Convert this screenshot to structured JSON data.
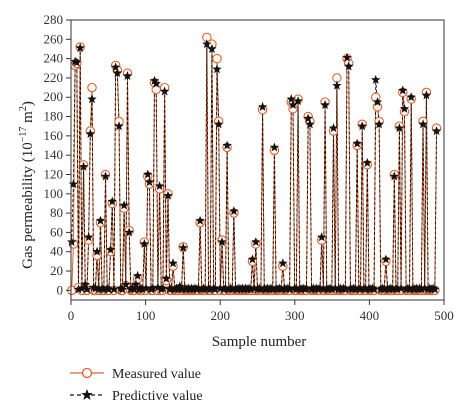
{
  "chart_data": {
    "type": "line",
    "xlabel": "Sample number",
    "ylabel_main": "Gas permeability (10",
    "ylabel_exp": "−17",
    "ylabel_unit": " m",
    "ylabel_unit_exp": "2",
    "ylabel_close": ")",
    "xlim": [
      0,
      500
    ],
    "ylim": [
      -10,
      280
    ],
    "xticks": [
      0,
      100,
      200,
      300,
      400,
      500
    ],
    "yticks": [
      0,
      20,
      40,
      60,
      80,
      100,
      120,
      140,
      160,
      180,
      200,
      220,
      240,
      260,
      280
    ],
    "grid": false,
    "legend_position": "bottom-left",
    "n_samples": 490,
    "series": [
      {
        "name": "Measured value",
        "color": "#e0622a",
        "marker": "circle",
        "linestyle": "solid",
        "values": [
          0,
          48,
          233,
          235,
          3,
          252,
          0,
          130,
          4,
          0,
          52,
          165,
          210,
          0,
          0,
          36,
          0,
          70,
          0,
          0,
          120,
          0,
          0,
          40,
          90,
          0,
          233,
          228,
          175,
          0,
          0,
          85,
          5,
          225,
          62,
          0,
          0,
          0,
          5,
          12,
          0,
          0,
          0,
          50,
          0,
          118,
          110,
          0,
          0,
          215,
          208,
          0,
          105,
          0,
          0,
          210,
          10,
          100,
          0,
          0,
          25,
          0,
          0,
          0,
          2,
          0,
          45,
          0,
          0,
          0,
          0,
          0,
          0,
          0,
          0,
          0,
          70,
          0,
          0,
          0,
          262,
          0,
          0,
          255,
          0,
          0,
          240,
          175,
          0,
          52,
          0,
          0,
          148,
          0,
          0,
          0,
          80,
          0,
          0,
          0,
          0,
          0,
          0,
          0,
          0,
          0,
          0,
          30,
          0,
          48,
          0,
          0,
          0,
          187,
          0,
          0,
          0,
          0,
          0,
          0,
          145,
          0,
          0,
          0,
          0,
          25,
          0,
          0,
          0,
          0,
          195,
          188,
          0,
          0,
          198,
          0,
          0,
          0,
          0,
          0,
          180,
          175,
          0,
          0,
          0,
          0,
          0,
          0,
          52,
          0,
          195,
          0,
          0,
          0,
          0,
          165,
          0,
          220,
          0,
          0,
          0,
          0,
          0,
          240,
          235,
          0,
          0,
          0,
          0,
          150,
          0,
          0,
          172,
          0,
          0,
          130,
          0,
          0,
          0,
          0,
          200,
          190,
          175,
          0,
          0,
          0,
          30,
          0,
          0,
          0,
          0,
          120,
          0,
          0,
          170,
          0,
          205,
          185,
          0,
          0,
          0,
          198,
          0,
          0,
          0,
          0,
          0,
          0,
          175,
          0,
          205,
          0,
          0,
          0,
          0,
          0,
          168
        ]
      },
      {
        "name": "Predictive value",
        "color": "#111111",
        "marker": "star",
        "linestyle": "dashed",
        "values": [
          50,
          110,
          237,
          236,
          1,
          251,
          2,
          128,
          6,
          1,
          55,
          162,
          198,
          3,
          2,
          40,
          1,
          72,
          2,
          1,
          118,
          2,
          1,
          42,
          92,
          1,
          231,
          225,
          170,
          2,
          1,
          88,
          6,
          222,
          60,
          1,
          2,
          1,
          6,
          15,
          1,
          2,
          1,
          48,
          2,
          120,
          112,
          1,
          2,
          217,
          214,
          3,
          108,
          1,
          2,
          206,
          12,
          98,
          1,
          2,
          28,
          1,
          2,
          1,
          4,
          1,
          44,
          2,
          1,
          2,
          1,
          2,
          1,
          2,
          1,
          2,
          72,
          1,
          2,
          1,
          255,
          2,
          1,
          250,
          2,
          1,
          229,
          172,
          2,
          50,
          1,
          2,
          150,
          1,
          2,
          1,
          82,
          2,
          1,
          2,
          1,
          2,
          1,
          2,
          1,
          2,
          1,
          32,
          2,
          50,
          1,
          2,
          1,
          190,
          2,
          1,
          2,
          1,
          2,
          1,
          148,
          2,
          1,
          2,
          1,
          28,
          2,
          1,
          2,
          1,
          198,
          192,
          2,
          1,
          196,
          2,
          1,
          2,
          1,
          2,
          178,
          172,
          1,
          2,
          1,
          2,
          1,
          2,
          55,
          1,
          192,
          2,
          1,
          2,
          1,
          168,
          2,
          212,
          1,
          2,
          1,
          2,
          1,
          241,
          232,
          2,
          1,
          2,
          1,
          152,
          2,
          1,
          170,
          2,
          1,
          132,
          2,
          1,
          2,
          1,
          218,
          195,
          172,
          1,
          2,
          1,
          32,
          2,
          1,
          2,
          1,
          118,
          2,
          1,
          168,
          2,
          207,
          188,
          1,
          2,
          1,
          200,
          2,
          1,
          2,
          1,
          2,
          1,
          172,
          2,
          202,
          1,
          2,
          1,
          2,
          1,
          165
        ]
      }
    ]
  }
}
